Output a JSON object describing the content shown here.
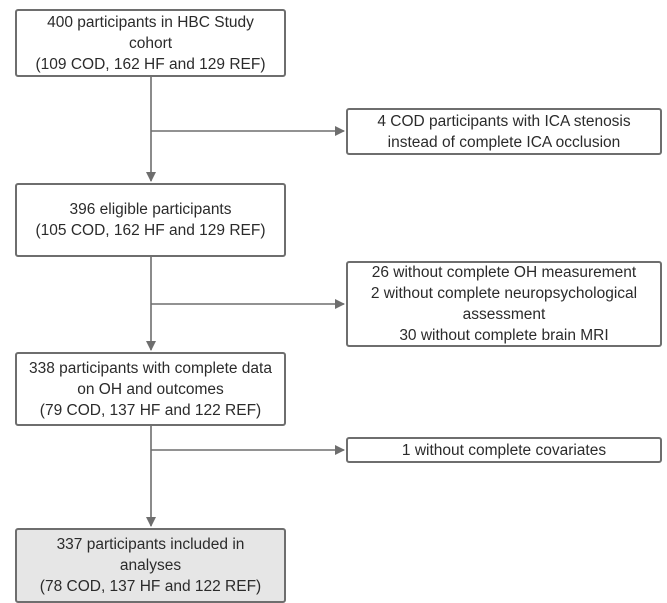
{
  "flowchart": {
    "main_boxes": [
      {
        "lines": [
          "400 participants in HBC Study",
          "cohort",
          "(109 COD, 162 HF and 129 REF)"
        ]
      },
      {
        "lines": [
          "396 eligible participants",
          "(105 COD, 162 HF and 129 REF)"
        ]
      },
      {
        "lines": [
          "338 participants with complete data",
          "on OH and outcomes",
          "(79 COD, 137 HF and 122 REF)"
        ]
      },
      {
        "lines": [
          "337 participants included in",
          "analyses",
          "(78 COD, 137 HF and 122 REF)"
        ]
      }
    ],
    "exclusion_boxes": [
      {
        "lines": [
          "4 COD participants with ICA stenosis",
          "instead of complete ICA occlusion"
        ]
      },
      {
        "lines": [
          "26 without complete OH measurement",
          "2 without complete neuropsychological",
          "assessment",
          "30 without complete brain MRI"
        ]
      },
      {
        "lines": [
          "1 without complete covariates"
        ]
      }
    ]
  },
  "colors": {
    "box_border": "#6e6e6e",
    "connector": "#6e6e6e",
    "final_box_fill": "#e6e6e6",
    "text": "#2b2b2b"
  }
}
